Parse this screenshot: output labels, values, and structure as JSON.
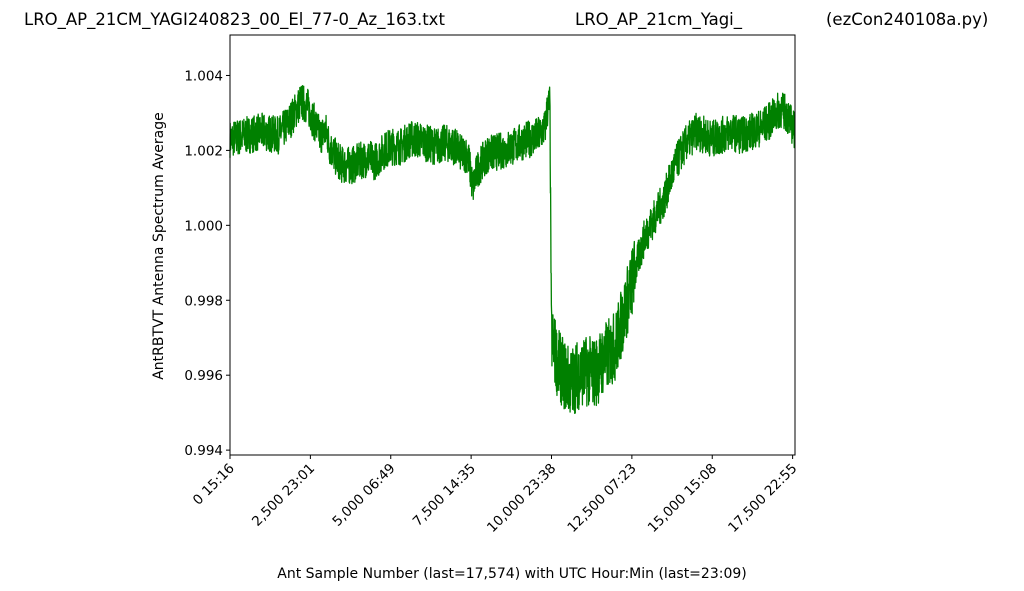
{
  "titles": {
    "left": "LRO_AP_21CM_YAGI240823_00_El_77-0_Az_163.txt",
    "middle": "LRO_AP_21cm_Yagi_",
    "right": "(ezCon240108a.py)"
  },
  "chart_data": {
    "type": "line",
    "xlabel": "Ant Sample Number (last=17,574) with UTC Hour:Min (last=23:09)",
    "ylabel": "AntRBTVT Antenna Spectrum Average",
    "xlim": [
      0,
      17574
    ],
    "ylim": [
      0.99387,
      1.00508
    ],
    "grid": false,
    "series_color": "#008000",
    "x_ticks": [
      {
        "value": 0,
        "label": "0  15:16"
      },
      {
        "value": 2500,
        "label": "2,500  23:01"
      },
      {
        "value": 5000,
        "label": "5,000  06:49"
      },
      {
        "value": 7500,
        "label": "7,500  14:35"
      },
      {
        "value": 10000,
        "label": "10,000  23:38"
      },
      {
        "value": 12500,
        "label": "12,500  07:23"
      },
      {
        "value": 15000,
        "label": "15,000  15:08"
      },
      {
        "value": 17500,
        "label": "17,500  22:55"
      }
    ],
    "y_ticks": [
      {
        "value": 0.994,
        "label": "0.994"
      },
      {
        "value": 0.996,
        "label": "0.996"
      },
      {
        "value": 0.998,
        "label": "0.998"
      },
      {
        "value": 1.0,
        "label": "1.000"
      },
      {
        "value": 1.002,
        "label": "1.002"
      },
      {
        "value": 1.004,
        "label": "1.004"
      }
    ],
    "series": [
      {
        "x": [
          0,
          500,
          1000,
          1500,
          1800,
          2000,
          2200,
          2400,
          2600,
          2800,
          3000,
          3100,
          3300,
          3500,
          3800,
          4000,
          4300,
          4500,
          4800,
          5000,
          5300,
          5600,
          5800,
          6100,
          6400,
          6700,
          7000,
          7200,
          7400,
          7550,
          7700,
          8000,
          8500,
          8800,
          9000,
          9300,
          9600,
          9800,
          9850,
          9950,
          10000,
          10200,
          10400,
          10600,
          10800,
          11000,
          11200,
          11400,
          11600,
          11800,
          12000,
          12300,
          12600,
          12900,
          13200,
          13500,
          13800,
          14000,
          14200,
          14500,
          14800,
          15000,
          15300,
          15600,
          15900,
          16200,
          16500,
          16800,
          17100,
          17300,
          17574
        ],
        "y": [
          1.0023,
          1.0024,
          1.0025,
          1.0024,
          1.0027,
          1.003,
          1.0033,
          1.0032,
          1.0028,
          1.0024,
          1.0025,
          1.0021,
          1.0018,
          1.0016,
          1.0016,
          1.0017,
          1.0018,
          1.0017,
          1.002,
          1.0021,
          1.0021,
          1.0023,
          1.0023,
          1.0022,
          1.0021,
          1.0022,
          1.0021,
          1.0019,
          1.0019,
          1.001,
          1.0015,
          1.0019,
          1.002,
          1.0021,
          1.0022,
          1.0023,
          1.0024,
          1.0026,
          1.003,
          1.0033,
          0.997,
          0.9963,
          0.996,
          0.9958,
          0.996,
          0.9961,
          0.9961,
          0.9961,
          0.9964,
          0.9966,
          0.9968,
          0.9978,
          0.9988,
          0.9997,
          1.0002,
          1.0007,
          1.0015,
          1.0019,
          1.0022,
          1.0025,
          1.0024,
          1.0023,
          1.0024,
          1.0025,
          1.0024,
          1.0025,
          1.0026,
          1.0028,
          1.0031,
          1.003,
          1.0025
        ]
      }
    ]
  }
}
